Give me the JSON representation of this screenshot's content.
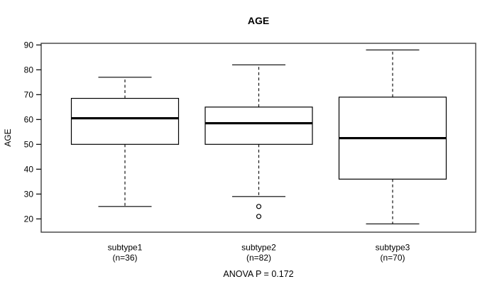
{
  "chart_data": {
    "type": "boxplot",
    "title": "AGE",
    "xlabel": "",
    "ylabel": "AGE",
    "annotation": "ANOVA P = 0.172",
    "ylim": [
      15,
      92
    ],
    "yticks": [
      20,
      30,
      40,
      50,
      60,
      70,
      80,
      90
    ],
    "grid": false,
    "legend": "none",
    "groups": [
      {
        "label": "subtype1",
        "sublabel": "(n=36)",
        "n": 36,
        "whisker_low": 25,
        "q1": 50,
        "median": 60.5,
        "q3": 68.5,
        "whisker_high": 77,
        "outliers": []
      },
      {
        "label": "subtype2",
        "sublabel": "(n=82)",
        "n": 82,
        "whisker_low": 29,
        "q1": 50,
        "median": 58.5,
        "q3": 65,
        "whisker_high": 82,
        "outliers": [
          25,
          21
        ]
      },
      {
        "label": "subtype3",
        "sublabel": "(n=70)",
        "n": 70,
        "whisker_low": 18,
        "q1": 36,
        "median": 52.5,
        "q3": 69,
        "whisker_high": 88,
        "outliers": []
      }
    ],
    "colors": {
      "frame": "#3f3f3f",
      "box_border": "#000000",
      "median": "#000000",
      "whisker": "#000000",
      "background": "#ffffff",
      "text": "#000000"
    }
  }
}
